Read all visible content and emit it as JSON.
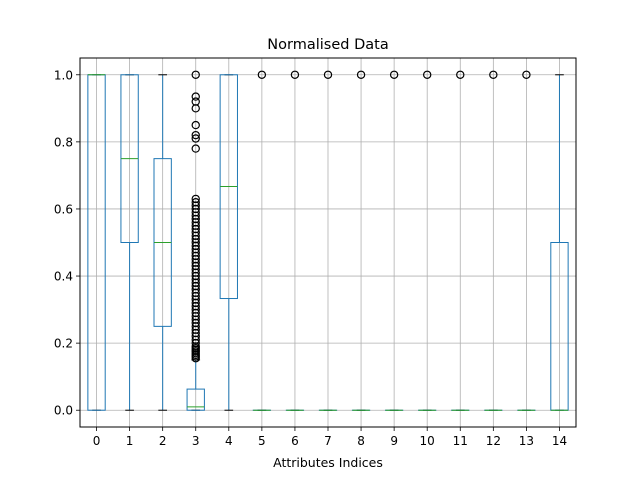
{
  "chart_data": {
    "type": "box",
    "title": "Normalised Data",
    "xlabel": "Attributes Indices",
    "ylabel": "",
    "ylim": [
      -0.05,
      1.05
    ],
    "yticks": [
      0.0,
      0.2,
      0.4,
      0.6,
      0.8,
      1.0
    ],
    "ytick_labels": [
      "0.0",
      "0.2",
      "0.4",
      "0.6",
      "0.8",
      "1.0"
    ],
    "grid": true,
    "colors": {
      "box": "#1f77b4",
      "median": "#2ca02c",
      "whisker_cap": "#000000",
      "grid": "#b0b0b0",
      "flier": "#000000"
    },
    "categories": [
      "0",
      "1",
      "2",
      "3",
      "4",
      "5",
      "6",
      "7",
      "8",
      "9",
      "10",
      "11",
      "12",
      "13",
      "14"
    ],
    "boxes": [
      {
        "label": "0",
        "whislo": 0.0,
        "q1": 0.0,
        "med": 1.0,
        "q3": 1.0,
        "whishi": 1.0,
        "fliers": []
      },
      {
        "label": "1",
        "whislo": 0.0,
        "q1": 0.5,
        "med": 0.75,
        "q3": 1.0,
        "whishi": 1.0,
        "fliers": []
      },
      {
        "label": "2",
        "whislo": 0.0,
        "q1": 0.25,
        "med": 0.5,
        "q3": 0.75,
        "whishi": 1.0,
        "fliers": []
      },
      {
        "label": "3",
        "whislo": 0.0,
        "q1": 0.0,
        "med": 0.01,
        "q3": 0.063,
        "whishi": 0.15,
        "fliers": [
          0.155,
          0.16,
          0.165,
          0.17,
          0.175,
          0.18,
          0.185,
          0.19,
          0.2,
          0.21,
          0.22,
          0.23,
          0.24,
          0.25,
          0.26,
          0.27,
          0.28,
          0.29,
          0.3,
          0.31,
          0.32,
          0.33,
          0.34,
          0.35,
          0.36,
          0.37,
          0.38,
          0.39,
          0.4,
          0.41,
          0.42,
          0.43,
          0.44,
          0.45,
          0.46,
          0.47,
          0.48,
          0.49,
          0.5,
          0.51,
          0.52,
          0.53,
          0.54,
          0.55,
          0.56,
          0.57,
          0.58,
          0.59,
          0.6,
          0.61,
          0.62,
          0.63,
          0.78,
          0.81,
          0.82,
          0.85,
          0.9,
          0.92,
          0.935,
          1.0
        ]
      },
      {
        "label": "4",
        "whislo": 0.0,
        "q1": 0.333,
        "med": 0.667,
        "q3": 1.0,
        "whishi": 1.0,
        "fliers": []
      },
      {
        "label": "5",
        "whislo": 0.0,
        "q1": 0.0,
        "med": 0.0,
        "q3": 0.0,
        "whishi": 0.0,
        "fliers": [
          1.0
        ]
      },
      {
        "label": "6",
        "whislo": 0.0,
        "q1": 0.0,
        "med": 0.0,
        "q3": 0.0,
        "whishi": 0.0,
        "fliers": [
          1.0
        ]
      },
      {
        "label": "7",
        "whislo": 0.0,
        "q1": 0.0,
        "med": 0.0,
        "q3": 0.0,
        "whishi": 0.0,
        "fliers": [
          1.0
        ]
      },
      {
        "label": "8",
        "whislo": 0.0,
        "q1": 0.0,
        "med": 0.0,
        "q3": 0.0,
        "whishi": 0.0,
        "fliers": [
          1.0
        ]
      },
      {
        "label": "9",
        "whislo": 0.0,
        "q1": 0.0,
        "med": 0.0,
        "q3": 0.0,
        "whishi": 0.0,
        "fliers": [
          1.0
        ]
      },
      {
        "label": "10",
        "whislo": 0.0,
        "q1": 0.0,
        "med": 0.0,
        "q3": 0.0,
        "whishi": 0.0,
        "fliers": [
          1.0
        ]
      },
      {
        "label": "11",
        "whislo": 0.0,
        "q1": 0.0,
        "med": 0.0,
        "q3": 0.0,
        "whishi": 0.0,
        "fliers": [
          1.0
        ]
      },
      {
        "label": "12",
        "whislo": 0.0,
        "q1": 0.0,
        "med": 0.0,
        "q3": 0.0,
        "whishi": 0.0,
        "fliers": [
          1.0
        ]
      },
      {
        "label": "13",
        "whislo": 0.0,
        "q1": 0.0,
        "med": 0.0,
        "q3": 0.0,
        "whishi": 0.0,
        "fliers": [
          1.0
        ]
      },
      {
        "label": "14",
        "whislo": 0.0,
        "q1": 0.0,
        "med": 0.0,
        "q3": 0.5,
        "whishi": 1.0,
        "fliers": []
      }
    ]
  }
}
